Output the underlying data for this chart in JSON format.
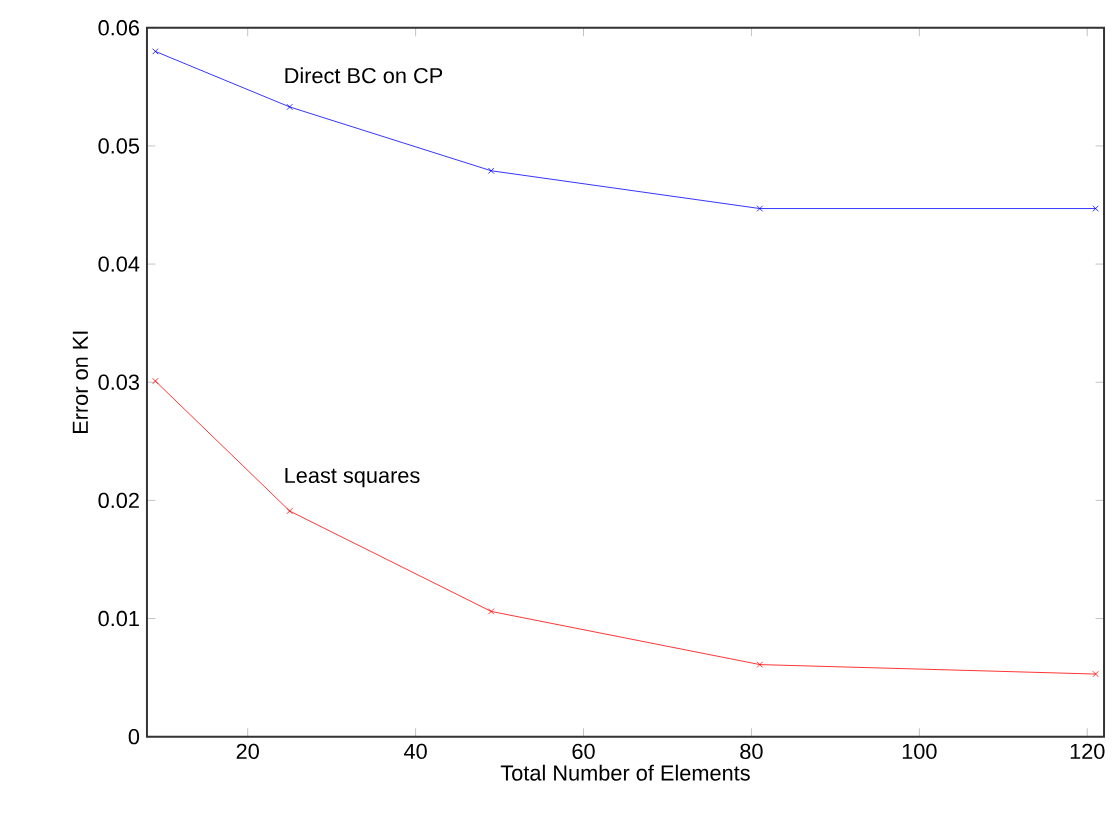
{
  "chart_data": {
    "type": "line",
    "xlabel": "Total Number of Elements",
    "ylabel": "Error on KI",
    "x": [
      9,
      25,
      49,
      81,
      121
    ],
    "series": [
      {
        "name": "Direct BC on CP",
        "color": "#0000ff",
        "values": [
          0.058,
          0.0533,
          0.0479,
          0.0447,
          0.0447
        ]
      },
      {
        "name": "Least squares",
        "color": "#ff0000",
        "values": [
          0.0301,
          0.0191,
          0.0106,
          0.0061,
          0.0053
        ]
      }
    ],
    "xlim": [
      8,
      122
    ],
    "ylim": [
      0,
      0.06
    ],
    "xticks": [
      20,
      40,
      60,
      80,
      100,
      120
    ],
    "yticks": [
      0,
      0.01,
      0.02,
      0.03,
      0.04,
      0.05,
      0.06
    ],
    "grid": false,
    "legend": false,
    "marker": "cross"
  }
}
